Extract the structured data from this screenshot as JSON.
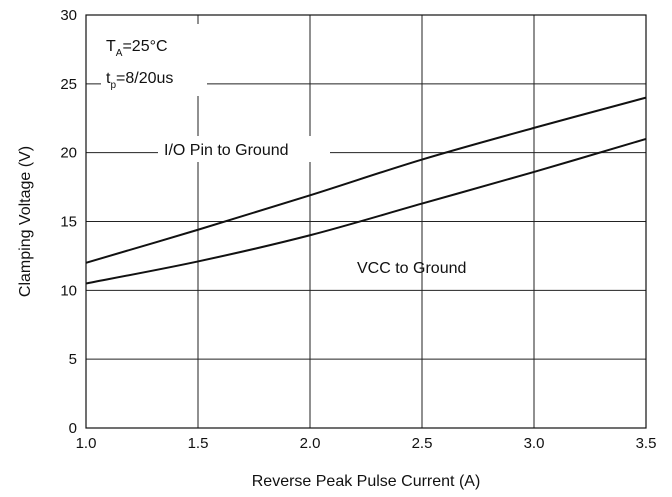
{
  "chart_data": {
    "type": "line",
    "title": "",
    "xlabel": "Reverse Peak Pulse Current (A)",
    "ylabel": "Clamping Voltage (V)",
    "xlim": [
      1.0,
      3.5
    ],
    "ylim": [
      0,
      30
    ],
    "x_ticks": [
      "1.0",
      "1.5",
      "2.0",
      "2.5",
      "3.0",
      "3.5"
    ],
    "y_ticks": [
      "0",
      "5",
      "10",
      "15",
      "20",
      "25",
      "30"
    ],
    "grid": true,
    "series": [
      {
        "name": "I/O Pin to Ground",
        "x": [
          1.0,
          1.5,
          2.0,
          2.5,
          3.0,
          3.5
        ],
        "y": [
          12.0,
          14.4,
          16.9,
          19.5,
          21.8,
          24.0
        ]
      },
      {
        "name": "VCC to Ground",
        "x": [
          1.0,
          1.5,
          2.0,
          2.5,
          3.0,
          3.5
        ],
        "y": [
          10.5,
          12.1,
          14.0,
          16.3,
          18.6,
          21.0
        ]
      }
    ],
    "annotations": {
      "temp_main": "T",
      "temp_sub": "A",
      "temp_rest": "=25°C",
      "pulse_main": "t",
      "pulse_sub": "p",
      "pulse_rest": "=8/20us"
    }
  }
}
